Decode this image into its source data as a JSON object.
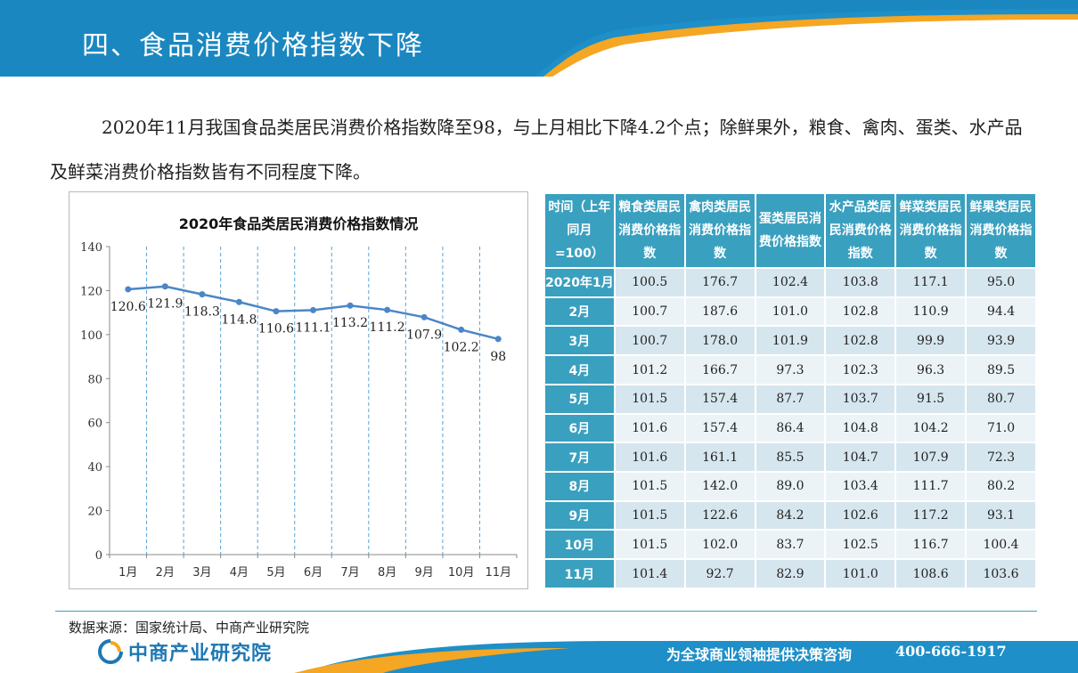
{
  "header": {
    "title": "四、食品消费价格指数下降"
  },
  "intro": "2020年11月我国食品类居民消费价格指数降至98，与上月相比下降4.2个点；除鲜果外，粮食、禽肉、蛋类、水产品及鲜菜消费价格指数皆有不同程度下降。",
  "colors": {
    "brand_blue": "#1e8fc8",
    "accent_orange": "#f5a623",
    "table_header": "#3aa0bf",
    "line": "#4a86c8"
  },
  "chart_data": {
    "type": "line",
    "title": "2020年食品类居民消费价格指数情况",
    "categories": [
      "1月",
      "2月",
      "3月",
      "4月",
      "5月",
      "6月",
      "7月",
      "8月",
      "9月",
      "10月",
      "11月"
    ],
    "values": [
      120.6,
      121.9,
      118.3,
      114.8,
      110.6,
      111.1,
      113.2,
      111.2,
      107.9,
      102.2,
      98
    ],
    "data_labels": [
      "120.6",
      "121.9",
      "118.3",
      "114.8",
      "110.6",
      "111.1",
      "113.2",
      "111.2",
      "107.9",
      "102.2",
      "98"
    ],
    "y_ticks": [
      "0",
      "20",
      "40",
      "60",
      "80",
      "100",
      "120",
      "140"
    ],
    "ylim": [
      0,
      140
    ],
    "grid": "vertical-dashed",
    "legend": "none"
  },
  "table": {
    "headers": [
      "时间（上年同月=100）",
      "粮食类居民消费价格指数",
      "禽肉类居民消费价格指数",
      "蛋类居民消费价格指数",
      "水产品类居民消费价格指数",
      "鲜菜类居民消费价格指数",
      "鲜果类居民消费价格指数"
    ],
    "rows": [
      [
        "2020年1月",
        "100.5",
        "176.7",
        "102.4",
        "103.8",
        "117.1",
        "95.0"
      ],
      [
        "2月",
        "100.7",
        "187.6",
        "101.0",
        "102.8",
        "110.9",
        "94.4"
      ],
      [
        "3月",
        "100.7",
        "178.0",
        "101.9",
        "102.8",
        "99.9",
        "93.9"
      ],
      [
        "4月",
        "101.2",
        "166.7",
        "97.3",
        "102.3",
        "96.3",
        "89.5"
      ],
      [
        "5月",
        "101.5",
        "157.4",
        "87.7",
        "103.7",
        "91.5",
        "80.7"
      ],
      [
        "6月",
        "101.6",
        "157.4",
        "86.4",
        "104.8",
        "104.2",
        "71.0"
      ],
      [
        "7月",
        "101.6",
        "161.1",
        "85.5",
        "104.7",
        "107.9",
        "72.3"
      ],
      [
        "8月",
        "101.5",
        "142.0",
        "89.0",
        "103.4",
        "111.7",
        "80.2"
      ],
      [
        "9月",
        "101.5",
        "122.6",
        "84.2",
        "102.6",
        "117.2",
        "93.1"
      ],
      [
        "10月",
        "101.5",
        "102.0",
        "83.7",
        "102.5",
        "116.7",
        "100.4"
      ],
      [
        "11月",
        "101.4",
        "92.7",
        "82.9",
        "101.0",
        "108.6",
        "103.6"
      ]
    ]
  },
  "footer": {
    "source": "数据来源：国家统计局、中商产业研究院",
    "logo": "中商产业研究院",
    "slogan": "为全球商业领袖提供决策咨询",
    "phone": "400-666-1917"
  }
}
